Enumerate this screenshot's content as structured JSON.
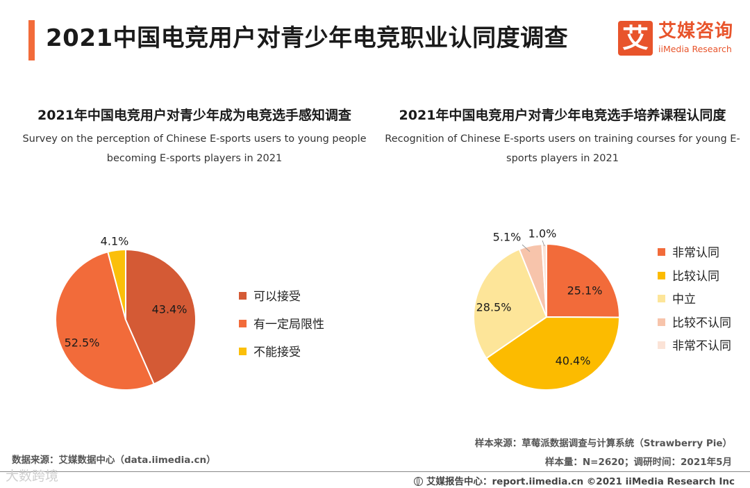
{
  "header": {
    "title": "2021中国电竞用户对青少年电竞职业认同度调查",
    "logo_mark": "艾",
    "logo_cn": "艾媒咨询",
    "logo_en": "iiMedia Research",
    "accent_color": "#f26b3a",
    "brand_color": "#e8542b"
  },
  "chart_data": [
    {
      "type": "pie",
      "title": "2021年中国电竞用户对青少年成为电竞选手感知调查",
      "subtitle_lines": [
        "Survey on the perception of Chinese E-sports users to young people",
        "becoming E-sports players in 2021"
      ],
      "start_angle_deg": 0,
      "slices": [
        {
          "label": "可以接受",
          "value": 43.4,
          "display": "43.4%",
          "color": "#d45a35"
        },
        {
          "label": "有一定局限性",
          "value": 52.5,
          "display": "52.5%",
          "color": "#f26b3a"
        },
        {
          "label": "不能接受",
          "value": 4.1,
          "display": "4.1%",
          "color": "#fbbf0a"
        }
      ]
    },
    {
      "type": "pie",
      "title": "2021年中国电竞用户对青少年电竞选手培养课程认同度",
      "subtitle_lines": [
        "Recognition of Chinese E-sports users on training courses for young E-",
        "sports players in 2021"
      ],
      "start_angle_deg": 0,
      "slices": [
        {
          "label": "非常认同",
          "value": 25.1,
          "display": "25.1%",
          "color": "#f26b3a"
        },
        {
          "label": "比较认同",
          "value": 40.4,
          "display": "40.4%",
          "color": "#fcbb00"
        },
        {
          "label": "中立",
          "value": 28.5,
          "display": "28.5%",
          "color": "#fde599"
        },
        {
          "label": "比较不认同",
          "value": 5.1,
          "display": "5.1%",
          "color": "#f7c4ab"
        },
        {
          "label": "非常不认同",
          "value": 1.0,
          "display": "1.0%",
          "color": "#fbe3d7"
        }
      ]
    }
  ],
  "footer": {
    "source": "数据来源：艾媒数据中心（data.iimedia.cn）",
    "sample_source": "样本来源：草莓派数据调查与计算系统（Strawberry Pie）",
    "sample_size": "样本量：N=2620；调研时间：2021年5月",
    "watermark": "大数跨境",
    "report": "艾媒报告中心：report.iimedia.cn ©2021  iiMedia Research  Inc"
  }
}
